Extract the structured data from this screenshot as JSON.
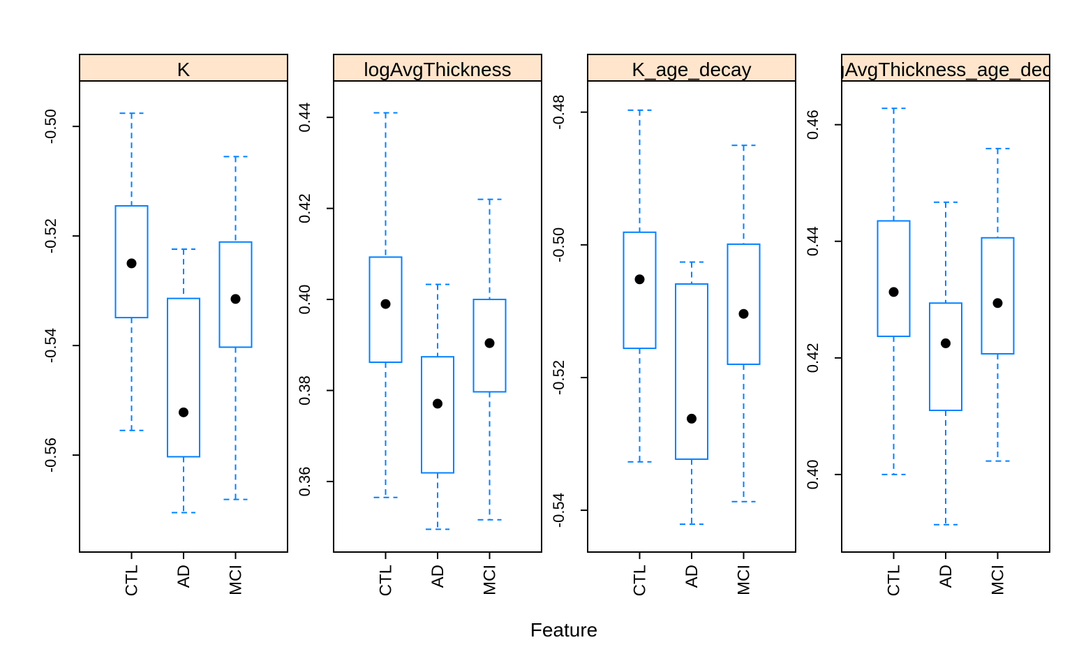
{
  "chart_data": {
    "type": "box",
    "xlabel": "Feature",
    "categories": [
      "CTL",
      "AD",
      "MCI"
    ],
    "style": {
      "box_color": "#0080ff",
      "strip_fill": "#ffe5cc",
      "point_color": "#000000",
      "frame_color": "#000000"
    },
    "panels": [
      {
        "title": "K",
        "ylim": [
          -0.5777,
          -0.4917
        ],
        "ticks": [
          -0.56,
          -0.54,
          -0.52,
          -0.5
        ],
        "tick_labels": [
          "-0.56",
          "-0.54",
          "-0.52",
          "-0.50"
        ],
        "boxes": [
          {
            "category": "CTL",
            "lower_whisker": -0.5555,
            "q1": -0.5349,
            "median": -0.525,
            "q3": -0.5145,
            "upper_whisker": -0.4976
          },
          {
            "category": "AD",
            "lower_whisker": -0.5705,
            "q1": -0.5603,
            "median": -0.5522,
            "q3": -0.5314,
            "upper_whisker": -0.5224
          },
          {
            "category": "MCI",
            "lower_whisker": -0.5681,
            "q1": -0.5403,
            "median": -0.5315,
            "q3": -0.5211,
            "upper_whisker": -0.5055
          }
        ]
      },
      {
        "title": "logAvgThickness",
        "ylim": [
          0.3445,
          0.448
        ],
        "ticks": [
          0.36,
          0.38,
          0.4,
          0.42,
          0.44
        ],
        "tick_labels": [
          "0.36",
          "0.38",
          "0.40",
          "0.42",
          "0.44"
        ],
        "boxes": [
          {
            "category": "CTL",
            "lower_whisker": 0.3565,
            "q1": 0.3862,
            "median": 0.399,
            "q3": 0.4093,
            "upper_whisker": 0.441
          },
          {
            "category": "AD",
            "lower_whisker": 0.3495,
            "q1": 0.3619,
            "median": 0.3771,
            "q3": 0.3874,
            "upper_whisker": 0.4033
          },
          {
            "category": "MCI",
            "lower_whisker": 0.3516,
            "q1": 0.3797,
            "median": 0.3904,
            "q3": 0.4,
            "upper_whisker": 0.422
          }
        ]
      },
      {
        "title": "K_age_decay",
        "ylim": [
          -0.5463,
          -0.4753
        ],
        "ticks": [
          -0.54,
          -0.52,
          -0.5,
          -0.48
        ],
        "tick_labels": [
          "-0.54",
          "-0.52",
          "-0.50",
          "-0.48"
        ],
        "boxes": [
          {
            "category": "CTL",
            "lower_whisker": -0.5327,
            "q1": -0.5156,
            "median": -0.5052,
            "q3": -0.4981,
            "upper_whisker": -0.4797
          },
          {
            "category": "AD",
            "lower_whisker": -0.5421,
            "q1": -0.5323,
            "median": -0.5262,
            "q3": -0.5059,
            "upper_whisker": -0.5026
          },
          {
            "category": "MCI",
            "lower_whisker": -0.5387,
            "q1": -0.518,
            "median": -0.5104,
            "q3": -0.4999,
            "upper_whisker": -0.485
          }
        ]
      },
      {
        "title": "logAvgThickness_age_decay",
        "ylim": [
          0.3867,
          0.4675
        ],
        "ticks": [
          0.4,
          0.42,
          0.44,
          0.46
        ],
        "tick_labels": [
          "0.40",
          "0.42",
          "0.44",
          "0.46"
        ],
        "boxes": [
          {
            "category": "CTL",
            "lower_whisker": 0.4,
            "q1": 0.4237,
            "median": 0.4313,
            "q3": 0.4435,
            "upper_whisker": 0.4628
          },
          {
            "category": "AD",
            "lower_whisker": 0.3914,
            "q1": 0.411,
            "median": 0.4225,
            "q3": 0.4294,
            "upper_whisker": 0.4467
          },
          {
            "category": "MCI",
            "lower_whisker": 0.4023,
            "q1": 0.4207,
            "median": 0.4294,
            "q3": 0.4406,
            "upper_whisker": 0.4559
          }
        ]
      }
    ]
  }
}
